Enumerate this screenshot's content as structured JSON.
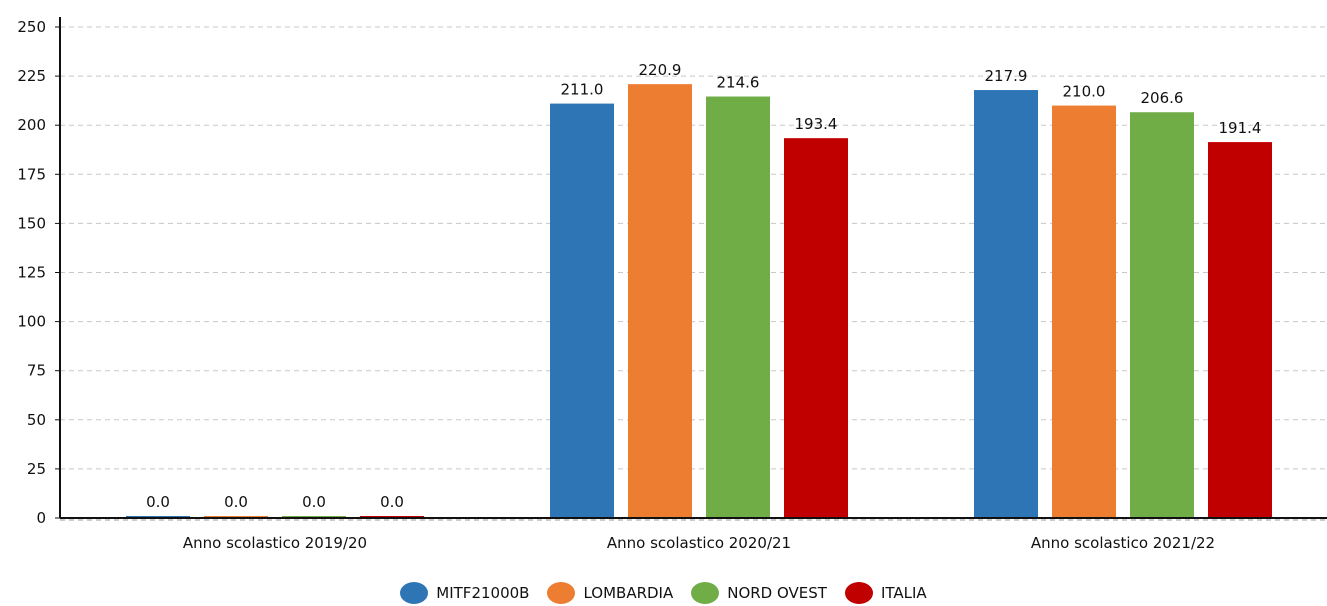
{
  "chart_data": {
    "type": "bar",
    "categories": [
      "Anno scolastico 2019/20",
      "Anno scolastico 2020/21",
      "Anno scolastico 2021/22"
    ],
    "series": [
      {
        "name": "MITF21000B",
        "color": "#2e75b6",
        "values": [
          0.0,
          211.0,
          217.9
        ],
        "labels": [
          "0.0",
          "211.0",
          "217.9"
        ]
      },
      {
        "name": "LOMBARDIA",
        "color": "#ed7d31",
        "values": [
          0.0,
          220.9,
          210.0
        ],
        "labels": [
          "0.0",
          "220.9",
          "210.0"
        ]
      },
      {
        "name": "NORD OVEST",
        "color": "#70ad47",
        "values": [
          0.0,
          214.6,
          206.6
        ],
        "labels": [
          "0.0",
          "214.6",
          "206.6"
        ]
      },
      {
        "name": "ITALIA",
        "color": "#c00000",
        "values": [
          0.0,
          193.4,
          191.4
        ],
        "labels": [
          "0.0",
          "193.4",
          "191.4"
        ]
      }
    ],
    "ylim": [
      0,
      250
    ],
    "yticks": [
      "0",
      "25",
      "50",
      "75",
      "100",
      "125",
      "150",
      "175",
      "200",
      "225",
      "250"
    ],
    "grid": true,
    "legend_position": "bottom"
  }
}
